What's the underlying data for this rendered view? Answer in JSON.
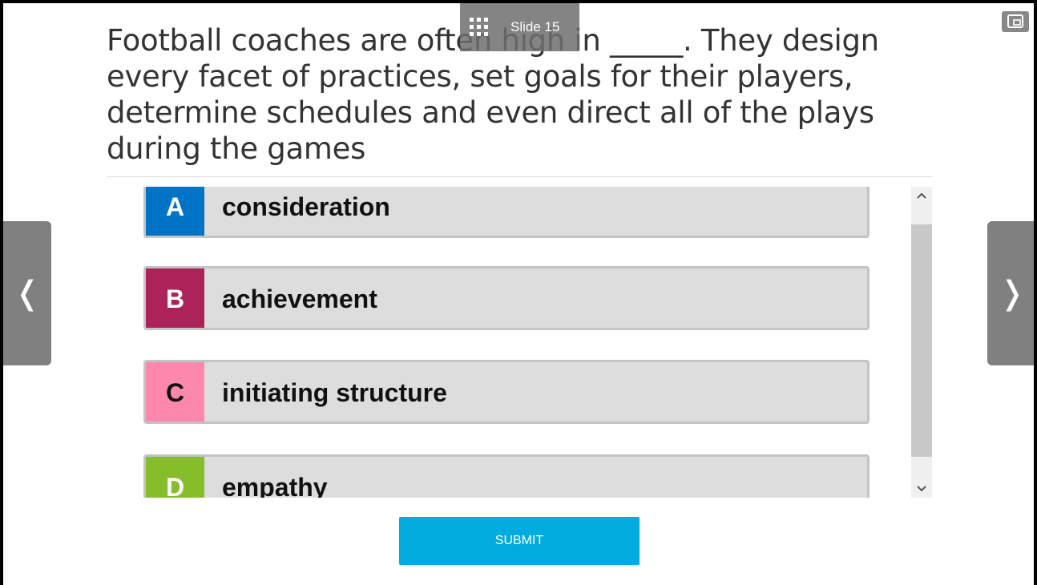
{
  "slide": {
    "label": "Slide 15",
    "grid_icon": "grid-icon"
  },
  "question": "Football coaches are often high in _____. They design every facet of practices, set goals for their players, determine schedules and even direct all of the plays during the games",
  "options": [
    {
      "letter": "A",
      "text": "consideration",
      "color": "#0073c6"
    },
    {
      "letter": "B",
      "text": "achievement",
      "color": "#ab2359"
    },
    {
      "letter": "C",
      "text": "initiating structure",
      "color": "#fd88ab"
    },
    {
      "letter": "D",
      "text": "empathy",
      "color": "#86bd2a"
    }
  ],
  "nav": {
    "prev": "❬",
    "next": "❭"
  },
  "scroll": {
    "up": "^",
    "down": "v"
  },
  "submit_label": "SUBMIT"
}
